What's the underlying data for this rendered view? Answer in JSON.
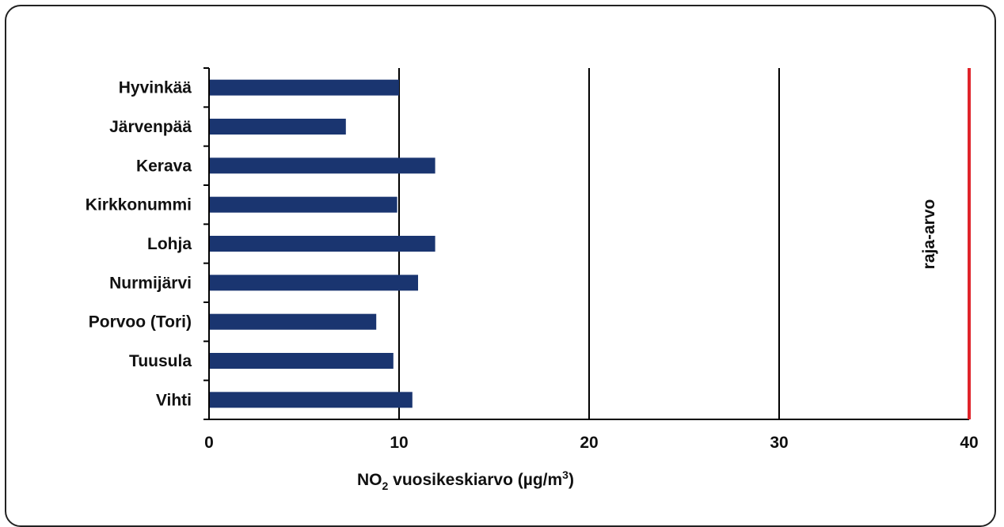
{
  "chart_data": {
    "type": "bar",
    "orientation": "horizontal",
    "categories": [
      "Hyvinkää",
      "Järvenpää",
      "Kerava",
      "Kirkkonummi",
      "Lohja",
      "Nurmijärvi",
      "Porvoo (Tori)",
      "Tuusula",
      "Vihti"
    ],
    "values": [
      10.0,
      7.2,
      11.9,
      9.9,
      11.9,
      11.0,
      8.8,
      9.7,
      10.7
    ],
    "xlim": [
      0,
      40
    ],
    "xticks": [
      "0",
      "10",
      "20",
      "30",
      "40"
    ],
    "xlabel": {
      "main": "NO",
      "sub": "2",
      "rest": " vuosikeskiarvo (µg/m",
      "sup": "3",
      "end": ")"
    },
    "grid": true,
    "bar_color": "#1a3570",
    "limit": {
      "value": 40,
      "label": "raja-arvo",
      "color": "#e0242a"
    }
  }
}
